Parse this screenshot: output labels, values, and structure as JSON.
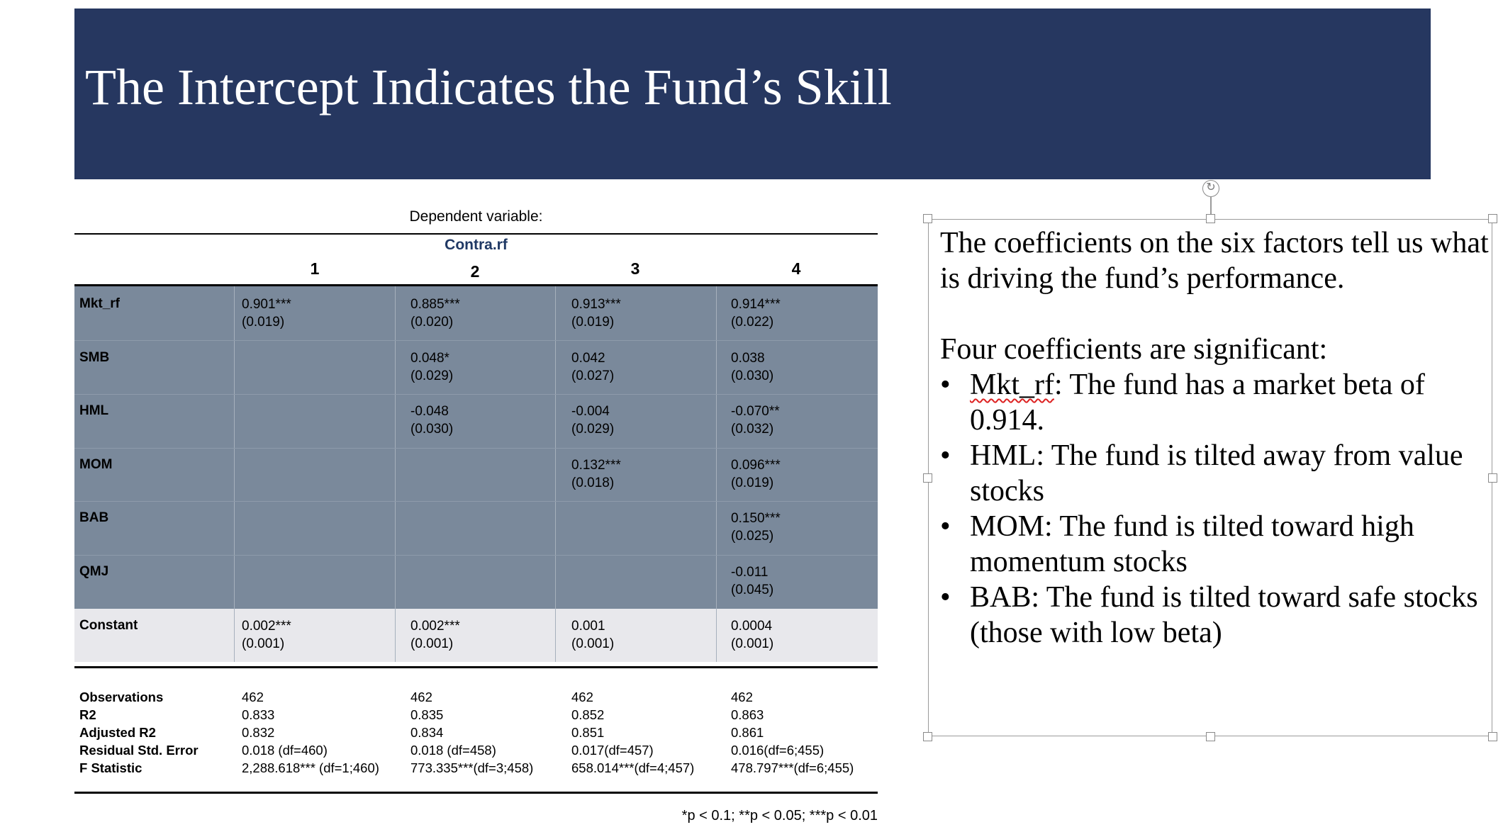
{
  "slide": {
    "title": "The Intercept Indicates the Fund’s Skill"
  },
  "table": {
    "dependent_variable_label": "Dependent variable:",
    "dependent_variable": "Contra.rf",
    "columns": [
      "1",
      "2",
      "3",
      "4"
    ],
    "rows": [
      {
        "label": "Mkt_rf",
        "cells": [
          [
            "0.901***",
            "(0.019)"
          ],
          [
            "0.885***",
            "(0.020)"
          ],
          [
            "0.913***",
            "(0.019)"
          ],
          [
            "0.914***",
            "(0.022)"
          ]
        ]
      },
      {
        "label": "SMB",
        "cells": [
          [
            "",
            ""
          ],
          [
            "0.048*",
            "(0.029)"
          ],
          [
            "0.042",
            "(0.027)"
          ],
          [
            "0.038",
            "(0.030)"
          ]
        ]
      },
      {
        "label": "HML",
        "cells": [
          [
            "",
            ""
          ],
          [
            "-0.048",
            "(0.030)"
          ],
          [
            "-0.004",
            "(0.029)"
          ],
          [
            "-0.070**",
            "(0.032)"
          ]
        ]
      },
      {
        "label": "MOM",
        "cells": [
          [
            "",
            ""
          ],
          [
            "",
            ""
          ],
          [
            "0.132***",
            "(0.018)"
          ],
          [
            "0.096***",
            "(0.019)"
          ]
        ]
      },
      {
        "label": "BAB",
        "cells": [
          [
            "",
            ""
          ],
          [
            "",
            ""
          ],
          [
            "",
            ""
          ],
          [
            "0.150***",
            "(0.025)"
          ]
        ]
      },
      {
        "label": "QMJ",
        "cells": [
          [
            "",
            ""
          ],
          [
            "",
            ""
          ],
          [
            "",
            ""
          ],
          [
            "-0.011",
            "(0.045)"
          ]
        ]
      },
      {
        "label": "Constant",
        "cells": [
          [
            "0.002***",
            "(0.001)"
          ],
          [
            "0.002***",
            "(0.001)"
          ],
          [
            "0.001",
            "(0.001)"
          ],
          [
            "0.0004",
            "(0.001)"
          ]
        ]
      }
    ],
    "stats": [
      {
        "label": "Observations",
        "values": [
          "462",
          "462",
          "462",
          "462"
        ]
      },
      {
        "label": "R2",
        "values": [
          "0.833",
          "0.835",
          "0.852",
          "0.863"
        ]
      },
      {
        "label": "Adjusted R2",
        "values": [
          "0.832",
          "0.834",
          "0.851",
          "0.861"
        ]
      },
      {
        "label": "Residual Std. Error",
        "values": [
          "0.018 (df=460)",
          "0.018 (df=458)",
          "0.017(df=457)",
          "0.016(df=6;455)"
        ]
      },
      {
        "label": "F Statistic",
        "values": [
          "2,288.618*** (df=1;460)",
          "773.335***(df=3;458)",
          "658.014***(df=4;457)",
          "478.797***(df=6;455)"
        ]
      }
    ],
    "footnote": "*p < 0.1; **p < 0.05; ***p < 0.01"
  },
  "textbox": {
    "intro": "The coefficients on the six factors tell us what is driving the fund’s performance.",
    "lead": "Four coefficients are significant:",
    "bullets": [
      {
        "term": "Mkt_rf",
        "text": ":  The fund has a market beta of 0.914."
      },
      {
        "term": "HML",
        "text": ":  The fund is tilted away from value stocks"
      },
      {
        "term": "MOM",
        "text": ":  The fund is tilted toward high momentum stocks"
      },
      {
        "term": "BAB",
        "text": ": The fund is tilted toward safe stocks (those with low beta)"
      }
    ]
  },
  "colors": {
    "title_bar": "#263760",
    "table_shading": "#7a899b",
    "constant_band": "#e8e8ec",
    "header_text": "#1f3864"
  }
}
